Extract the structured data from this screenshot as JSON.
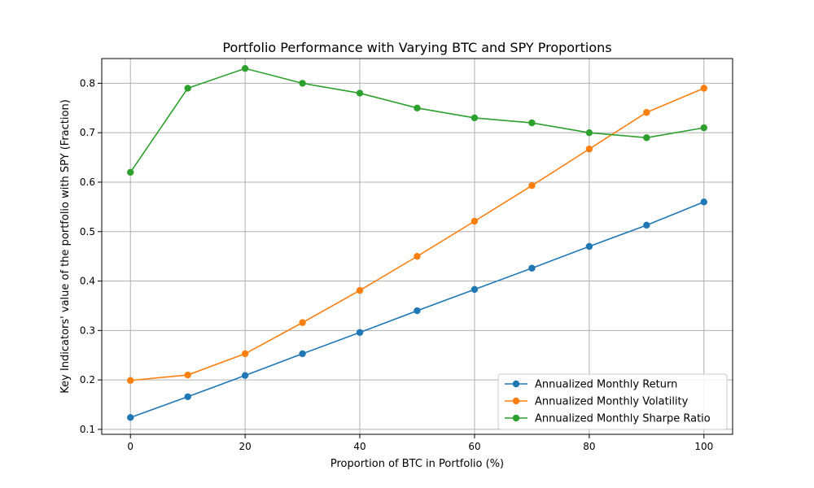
{
  "chart_data": {
    "type": "line",
    "title": "Portfolio Performance with Varying BTC and SPY Proportions",
    "xlabel": "Proportion of BTC in Portfolio (%)",
    "ylabel": "Key Indicators' value of the portfolio with SPY (Fraction)",
    "x": [
      0,
      10,
      20,
      30,
      40,
      50,
      60,
      70,
      80,
      90,
      100
    ],
    "xlim": [
      -5,
      105
    ],
    "ylim": [
      0.09,
      0.85
    ],
    "xticks": [
      0,
      20,
      40,
      60,
      80,
      100
    ],
    "yticks": [
      0.1,
      0.2,
      0.3,
      0.4,
      0.5,
      0.6,
      0.7,
      0.8
    ],
    "grid": true,
    "legend_position": "lower-right",
    "series": [
      {
        "name": "Annualized Monthly Return",
        "color": "#1f77b4",
        "values": [
          0.124,
          0.166,
          0.209,
          0.253,
          0.296,
          0.34,
          0.383,
          0.426,
          0.47,
          0.513,
          0.56
        ]
      },
      {
        "name": "Annualized Monthly Volatility",
        "color": "#ff7f0e",
        "values": [
          0.199,
          0.21,
          0.253,
          0.316,
          0.381,
          0.45,
          0.521,
          0.593,
          0.667,
          0.741,
          0.79
        ]
      },
      {
        "name": "Annualized Monthly Sharpe Ratio",
        "color": "#2ca02c",
        "values": [
          0.62,
          0.79,
          0.83,
          0.8,
          0.78,
          0.75,
          0.73,
          0.72,
          0.7,
          0.69,
          0.71
        ]
      }
    ]
  }
}
